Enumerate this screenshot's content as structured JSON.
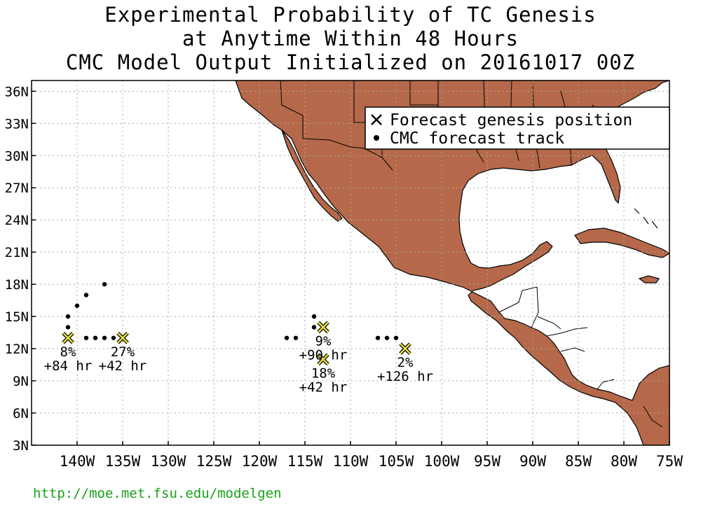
{
  "title": {
    "line1": "Experimental Probability of TC Genesis",
    "line2": "at Anytime Within 48 Hours",
    "line3": "CMC Model Output Initialized on 20161017 00Z"
  },
  "legend": {
    "genesis_label": "Forecast genesis position",
    "track_label": "CMC forecast track"
  },
  "source_url": "http://moe.met.fsu.edu/modelgen",
  "colors": {
    "land": "#b5694a",
    "genesis_marker": "#e8e040",
    "text": "#000000",
    "url": "#1aa01a"
  },
  "axes": {
    "lon_range": [
      -145,
      -75
    ],
    "lat_range": [
      3,
      37
    ],
    "lon_ticks": [
      {
        "value": -140,
        "label": "140W"
      },
      {
        "value": -135,
        "label": "135W"
      },
      {
        "value": -130,
        "label": "130W"
      },
      {
        "value": -125,
        "label": "125W"
      },
      {
        "value": -120,
        "label": "120W"
      },
      {
        "value": -115,
        "label": "115W"
      },
      {
        "value": -110,
        "label": "110W"
      },
      {
        "value": -105,
        "label": "105W"
      },
      {
        "value": -100,
        "label": "100W"
      },
      {
        "value": -95,
        "label": "95W"
      },
      {
        "value": -90,
        "label": "90W"
      },
      {
        "value": -85,
        "label": "85W"
      },
      {
        "value": -80,
        "label": "80W"
      },
      {
        "value": -75,
        "label": "75W"
      }
    ],
    "lat_ticks": [
      {
        "value": 3,
        "label": "3N"
      },
      {
        "value": 6,
        "label": "6N"
      },
      {
        "value": 9,
        "label": "9N"
      },
      {
        "value": 12,
        "label": "12N"
      },
      {
        "value": 15,
        "label": "15N"
      },
      {
        "value": 18,
        "label": "18N"
      },
      {
        "value": 21,
        "label": "21N"
      },
      {
        "value": 24,
        "label": "24N"
      },
      {
        "value": 27,
        "label": "27N"
      },
      {
        "value": 30,
        "label": "30N"
      },
      {
        "value": 33,
        "label": "33N"
      },
      {
        "value": 36,
        "label": "36N"
      }
    ],
    "grid": true
  },
  "genesis": [
    {
      "lon": -141,
      "lat": 13,
      "prob": "8%",
      "lead": "+84 hr"
    },
    {
      "lon": -135,
      "lat": 13,
      "prob": "27%",
      "lead": "+42 hr"
    },
    {
      "lon": -113,
      "lat": 14,
      "prob": "9%",
      "lead": "+90 hr"
    },
    {
      "lon": -113,
      "lat": 11,
      "prob": "18%",
      "lead": "+42 hr"
    },
    {
      "lon": -104,
      "lat": 12,
      "prob": "2%",
      "lead": "+126 hr"
    }
  ],
  "tracks": [
    {
      "lon": -141,
      "lat": 14
    },
    {
      "lon": -141,
      "lat": 15
    },
    {
      "lon": -140,
      "lat": 16
    },
    {
      "lon": -139,
      "lat": 17
    },
    {
      "lon": -137,
      "lat": 18
    },
    {
      "lon": -139,
      "lat": 13
    },
    {
      "lon": -138,
      "lat": 13
    },
    {
      "lon": -137,
      "lat": 13
    },
    {
      "lon": -136,
      "lat": 13
    },
    {
      "lon": -117,
      "lat": 13
    },
    {
      "lon": -116,
      "lat": 13
    },
    {
      "lon": -114,
      "lat": 15
    },
    {
      "lon": -114,
      "lat": 14
    },
    {
      "lon": -107,
      "lat": 13
    },
    {
      "lon": -106,
      "lat": 13
    },
    {
      "lon": -105,
      "lat": 13
    }
  ]
}
